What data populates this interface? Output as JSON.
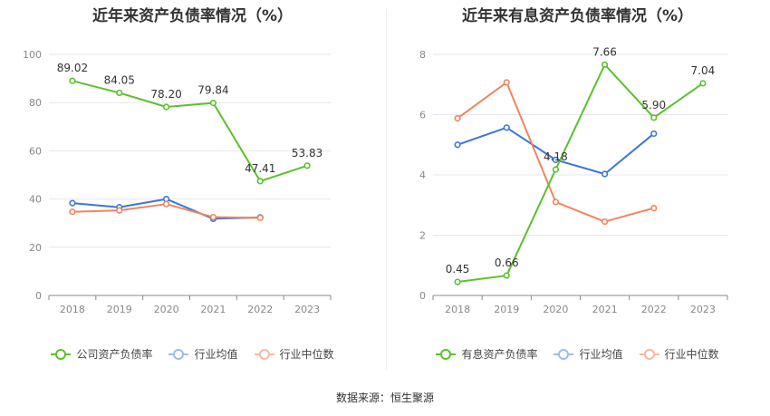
{
  "footer": "数据来源：恒生聚源",
  "chart_data": [
    {
      "type": "line",
      "title": "近年来资产负债率情况（%）",
      "categories": [
        "2018",
        "2019",
        "2020",
        "2021",
        "2022",
        "2023"
      ],
      "ylim": [
        0,
        100
      ],
      "yticks": [
        0,
        20,
        40,
        60,
        80,
        100
      ],
      "grid": true,
      "legend_position": "bottom",
      "series": [
        {
          "name": "公司资产负债率",
          "color": "#5ac02c",
          "values": [
            89.02,
            84.05,
            78.2,
            79.84,
            47.41,
            53.83
          ],
          "labels": [
            "89.02",
            "84.05",
            "78.20",
            "79.84",
            "47.41",
            "53.83"
          ]
        },
        {
          "name": "行业均值",
          "color": "#3d76d6",
          "values": [
            38.3,
            36.6,
            40.0,
            31.8,
            32.4,
            null
          ]
        },
        {
          "name": "行业中位数",
          "color": "#f0845c",
          "values": [
            34.7,
            35.3,
            37.9,
            32.5,
            32.2,
            null
          ]
        }
      ]
    },
    {
      "type": "line",
      "title": "近年来有息资产负债率情况（%）",
      "categories": [
        "2018",
        "2019",
        "2020",
        "2021",
        "2022",
        "2023"
      ],
      "ylim": [
        0,
        8
      ],
      "yticks": [
        0,
        2,
        4,
        6,
        8
      ],
      "grid": true,
      "legend_position": "bottom",
      "series": [
        {
          "name": "有息资产负债率",
          "color": "#5ac02c",
          "values": [
            0.45,
            0.66,
            4.18,
            7.66,
            5.9,
            7.04
          ],
          "labels": [
            "0.45",
            "0.66",
            "4.18",
            "7.66",
            "5.90",
            "7.04"
          ]
        },
        {
          "name": "行业均值",
          "color": "#3d76d6",
          "values": [
            5.0,
            5.57,
            4.5,
            4.03,
            5.37,
            null
          ]
        },
        {
          "name": "行业中位数",
          "color": "#f0845c",
          "values": [
            5.88,
            7.07,
            3.1,
            2.45,
            2.9,
            null
          ]
        }
      ]
    }
  ]
}
